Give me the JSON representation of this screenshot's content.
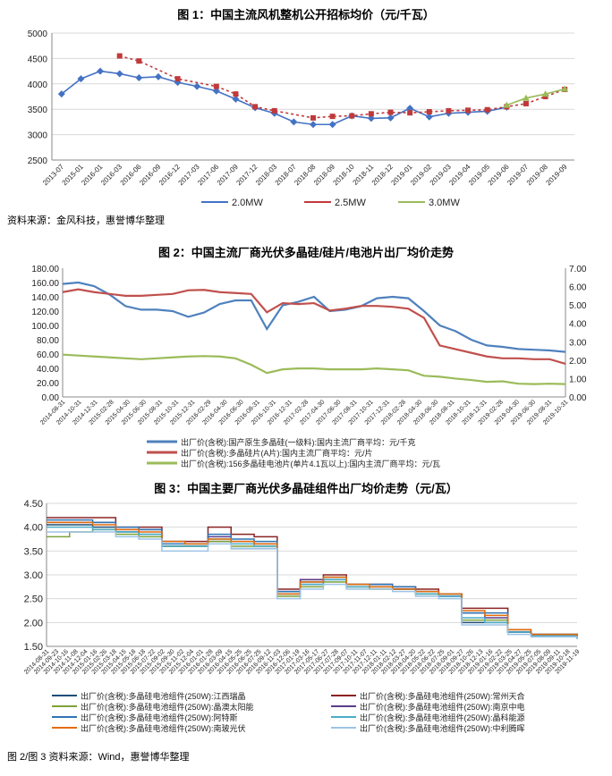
{
  "chart_data": [
    {
      "type": "line",
      "title": "图 1：中国主流风机整机公开招标均价（元/千瓦）",
      "categories": [
        "2013-07",
        "2015-01",
        "2016-01",
        "2016-03",
        "2016-06",
        "2016-09",
        "2016-12",
        "2017-03",
        "2017-06",
        "2017-09",
        "2017-12",
        "2018-03",
        "2018-07",
        "2018-08",
        "2018-09",
        "2018-10",
        "2018-11",
        "2018-12",
        "2019-01",
        "2019-02",
        "2019-03",
        "2019-04",
        "2019-05",
        "2019-06",
        "2019-07",
        "2019-08",
        "2019-09"
      ],
      "ylim": [
        2500,
        5000
      ],
      "yticks": [
        2500,
        3000,
        3500,
        4000,
        4500,
        5000
      ],
      "series": [
        {
          "name": "2.0MW",
          "color": "#4472C4",
          "marker": "diamond",
          "values": [
            3800,
            4100,
            4250,
            4200,
            4120,
            4140,
            4030,
            3950,
            3860,
            3700,
            3530,
            3420,
            3250,
            3200,
            3200,
            3370,
            3320,
            3330,
            3520,
            3350,
            3420,
            3440,
            3460,
            3540,
            null,
            null,
            null
          ]
        },
        {
          "name": "2.5MW",
          "color": "#C0393B",
          "marker": "square",
          "values": [
            null,
            null,
            null,
            4550,
            4450,
            null,
            4100,
            null,
            3950,
            3800,
            3550,
            3470,
            null,
            3330,
            3360,
            3370,
            3410,
            3440,
            3430,
            3450,
            3470,
            3480,
            3490,
            3550,
            3610,
            3750,
            3890
          ]
        },
        {
          "name": "3.0MW",
          "color": "#9BBB59",
          "marker": "triangle",
          "values": [
            null,
            null,
            null,
            null,
            null,
            null,
            null,
            null,
            null,
            null,
            null,
            null,
            null,
            null,
            null,
            null,
            null,
            null,
            null,
            null,
            null,
            null,
            null,
            3580,
            3720,
            3800,
            3900
          ]
        }
      ],
      "legend": "bottom",
      "source": "资料来源：金风科技，惠誉博华整理"
    },
    {
      "type": "line",
      "title": "图 2：中国主流厂商光伏多晶硅/硅片/电池片出厂均价走势",
      "x_ticks": [
        "2014-08-31",
        "2014-10-31",
        "2014-12-31",
        "2015-02-28",
        "2015-04-30",
        "2015-06-30",
        "2015-08-31",
        "2015-10-31",
        "2015-12-31",
        "2016-02-29",
        "2016-04-30",
        "2016-06-30",
        "2016-08-31",
        "2016-10-31",
        "2016-12-31",
        "2017-02-28",
        "2017-04-30",
        "2017-06-30",
        "2017-08-31",
        "2017-10-31",
        "2017-12-31",
        "2018-02-28",
        "2018-04-30",
        "2018-06-30",
        "2018-08-31",
        "2018-10-31",
        "2018-12-31",
        "2019-02-28",
        "2019-04-30",
        "2019-06-30",
        "2019-08-31",
        "2019-10-31"
      ],
      "y_left": {
        "ylim": [
          0,
          180
        ],
        "ticks": [
          "0.00",
          "20.00",
          "40.00",
          "60.00",
          "80.00",
          "100.00",
          "120.00",
          "140.00",
          "160.00",
          "180.00"
        ]
      },
      "y_right": {
        "ylim": [
          0,
          7
        ],
        "ticks": [
          "0.00",
          "1.00",
          "2.00",
          "3.00",
          "4.00",
          "5.00",
          "6.00",
          "7.00"
        ]
      },
      "series": [
        {
          "name": "出厂价(含税):国产原生多晶硅(一级料):国内主流厂商平均：元/千克",
          "color": "#4F81BD",
          "axis": "left",
          "values": [
            158,
            160,
            155,
            143,
            127,
            122,
            122,
            120,
            112,
            118,
            130,
            135,
            135,
            95,
            128,
            133,
            140,
            120,
            122,
            127,
            138,
            140,
            138,
            120,
            100,
            92,
            80,
            72,
            70,
            67,
            66,
            65,
            63
          ]
        },
        {
          "name": "出厂价(含税):多晶硅片(A片):国内主流厂商平均：元/片",
          "color": "#C0504D",
          "axis": "right",
          "values": [
            5.7,
            5.85,
            5.7,
            5.6,
            5.5,
            5.5,
            5.55,
            5.6,
            5.8,
            5.82,
            5.7,
            5.65,
            5.6,
            4.6,
            5.1,
            5.05,
            5.1,
            4.7,
            4.8,
            4.95,
            4.95,
            4.9,
            4.8,
            4.3,
            2.8,
            2.6,
            2.4,
            2.2,
            2.1,
            2.1,
            2.05,
            2.05,
            1.8
          ]
        },
        {
          "name": "出厂价(含税):156多晶硅电池片(单片4.1瓦以上):国内主流厂商平均：元/瓦",
          "color": "#9BBB59",
          "axis": "right",
          "values": [
            2.3,
            2.25,
            2.2,
            2.15,
            2.1,
            2.05,
            2.1,
            2.15,
            2.2,
            2.22,
            2.2,
            2.1,
            1.75,
            1.3,
            1.5,
            1.55,
            1.55,
            1.5,
            1.5,
            1.5,
            1.55,
            1.5,
            1.45,
            1.15,
            1.1,
            1.0,
            0.92,
            0.82,
            0.85,
            0.72,
            0.7,
            0.72,
            0.7
          ]
        }
      ]
    },
    {
      "type": "line",
      "title": "图 3：中国主要厂商光伏多晶硅组件出厂均价走势（元/瓦）",
      "x_ticks": [
        "2014-08-31",
        "2014-09-23",
        "2014-10-16",
        "2014-11-08",
        "2014-12-04",
        "2015-01-16",
        "2015-02-26",
        "2015-03-18",
        "2015-04-15",
        "2015-05-18",
        "2015-06-18",
        "2015-07-22",
        "2015-09-02",
        "2015-09-30",
        "2015-11-02",
        "2015-12-04",
        "2016-01-01",
        "2016-01-28",
        "2016-03-09",
        "2016-04-15",
        "2016-05-25",
        "2016-06-25",
        "2016-07-25",
        "2016-09-12",
        "2016-11-03",
        "2016-12-06",
        "2017-01-19",
        "2017-03-16",
        "2017-05-17",
        "2017-06-27",
        "2017-07-28",
        "2017-09-07",
        "2017-10-11",
        "2017-11-07",
        "2017-12-11",
        "2018-01-11",
        "2018-02-12",
        "2018-03-27",
        "2018-04-20",
        "2018-05-22",
        "2018-06-22",
        "2018-07-25",
        "2018-09-01",
        "2018-09-27",
        "2018-10-26",
        "2018-12-13",
        "2019-01-16",
        "2019-02-22",
        "2019-03-25",
        "2019-04-27",
        "2019-05-25",
        "2019-07-05",
        "2019-08-09",
        "2019-09-11",
        "2019-10-18",
        "2019-11-19"
      ],
      "ylim": [
        1.5,
        4.5
      ],
      "yticks": [
        "1.50",
        "2.00",
        "2.50",
        "3.00",
        "3.50",
        "4.00",
        "4.50"
      ],
      "series": [
        {
          "name": "出厂价(含税):多晶硅电池组件(250W):江西瑞晶",
          "color": "#1F4E79",
          "values": [
            4.05,
            4.05,
            4.0,
            3.9,
            3.85,
            3.6,
            3.6,
            3.7,
            3.55,
            3.55,
            2.6,
            2.8,
            2.9,
            2.75,
            2.75,
            2.7,
            2.6,
            2.55,
            2.0,
            2.0,
            1.8,
            1.75,
            1.75,
            1.65
          ]
        },
        {
          "name": "出厂价(含税):多晶硅电池组件(250W):常州天合",
          "color": "#8B2323",
          "values": [
            4.2,
            4.2,
            4.2,
            4.0,
            4.0,
            3.7,
            3.7,
            4.0,
            3.85,
            3.8,
            2.7,
            2.9,
            3.0,
            2.8,
            2.8,
            2.75,
            2.7,
            2.6,
            2.3,
            2.3,
            1.85,
            1.75,
            1.75,
            1.7
          ]
        },
        {
          "name": "出厂价(含税):多晶硅电池组件(250W):晶澳太阳能",
          "color": "#7DA23A",
          "values": [
            3.8,
            3.9,
            3.95,
            3.85,
            3.8,
            3.6,
            3.6,
            3.7,
            3.6,
            3.6,
            2.55,
            2.75,
            2.85,
            2.75,
            2.7,
            2.7,
            2.6,
            2.6,
            2.05,
            2.05,
            1.8,
            1.75,
            1.75,
            1.68
          ]
        },
        {
          "name": "出厂价(含税):多晶硅电池组件(250W):南京中电",
          "color": "#5B3D8A",
          "values": [
            4.1,
            4.1,
            4.1,
            3.95,
            3.95,
            3.7,
            3.65,
            3.8,
            3.7,
            3.65,
            2.65,
            2.9,
            2.95,
            2.8,
            2.8,
            2.7,
            2.65,
            2.6,
            2.2,
            2.1,
            1.8,
            1.75,
            1.75,
            1.7
          ]
        },
        {
          "name": "出厂价(含税):多晶硅电池组件(250W):阿特斯",
          "color": "#2E75B6",
          "values": [
            4.15,
            4.15,
            4.1,
            4.0,
            3.95,
            3.65,
            3.65,
            3.85,
            3.75,
            3.7,
            2.65,
            2.85,
            2.95,
            2.8,
            2.8,
            2.75,
            2.65,
            2.6,
            2.2,
            2.2,
            1.8,
            1.75,
            1.75,
            1.72
          ]
        },
        {
          "name": "出厂价(含税):多晶硅电池组件(250W):晶科能源",
          "color": "#4BACC6",
          "values": [
            4.0,
            4.0,
            3.95,
            3.9,
            3.85,
            3.6,
            3.6,
            3.75,
            3.65,
            3.6,
            2.6,
            2.8,
            2.9,
            2.75,
            2.75,
            2.7,
            2.6,
            2.55,
            2.1,
            2.0,
            1.8,
            1.72,
            1.72,
            1.65
          ]
        },
        {
          "name": "出厂价(含税):多晶硅电池组件(250W):南玻光伏",
          "color": "#E46C0A",
          "values": [
            4.1,
            4.1,
            4.05,
            3.95,
            3.9,
            3.7,
            3.65,
            3.75,
            3.7,
            3.65,
            2.6,
            2.85,
            2.95,
            2.8,
            2.75,
            2.7,
            2.65,
            2.6,
            2.25,
            2.15,
            1.85,
            1.75,
            1.75,
            1.7
          ]
        },
        {
          "name": "出厂价(含税):多晶硅电池组件(250W):中利腾晖",
          "color": "#9DC3E6",
          "values": [
            3.9,
            3.9,
            3.9,
            3.8,
            3.75,
            3.5,
            3.5,
            3.65,
            3.55,
            3.55,
            2.5,
            2.7,
            2.8,
            2.7,
            2.7,
            2.65,
            2.55,
            2.5,
            1.95,
            1.95,
            1.75,
            1.7,
            1.7,
            1.65
          ]
        }
      ],
      "source": "图 2/图 3 资料来源：Wind，惠誉博华整理"
    }
  ]
}
